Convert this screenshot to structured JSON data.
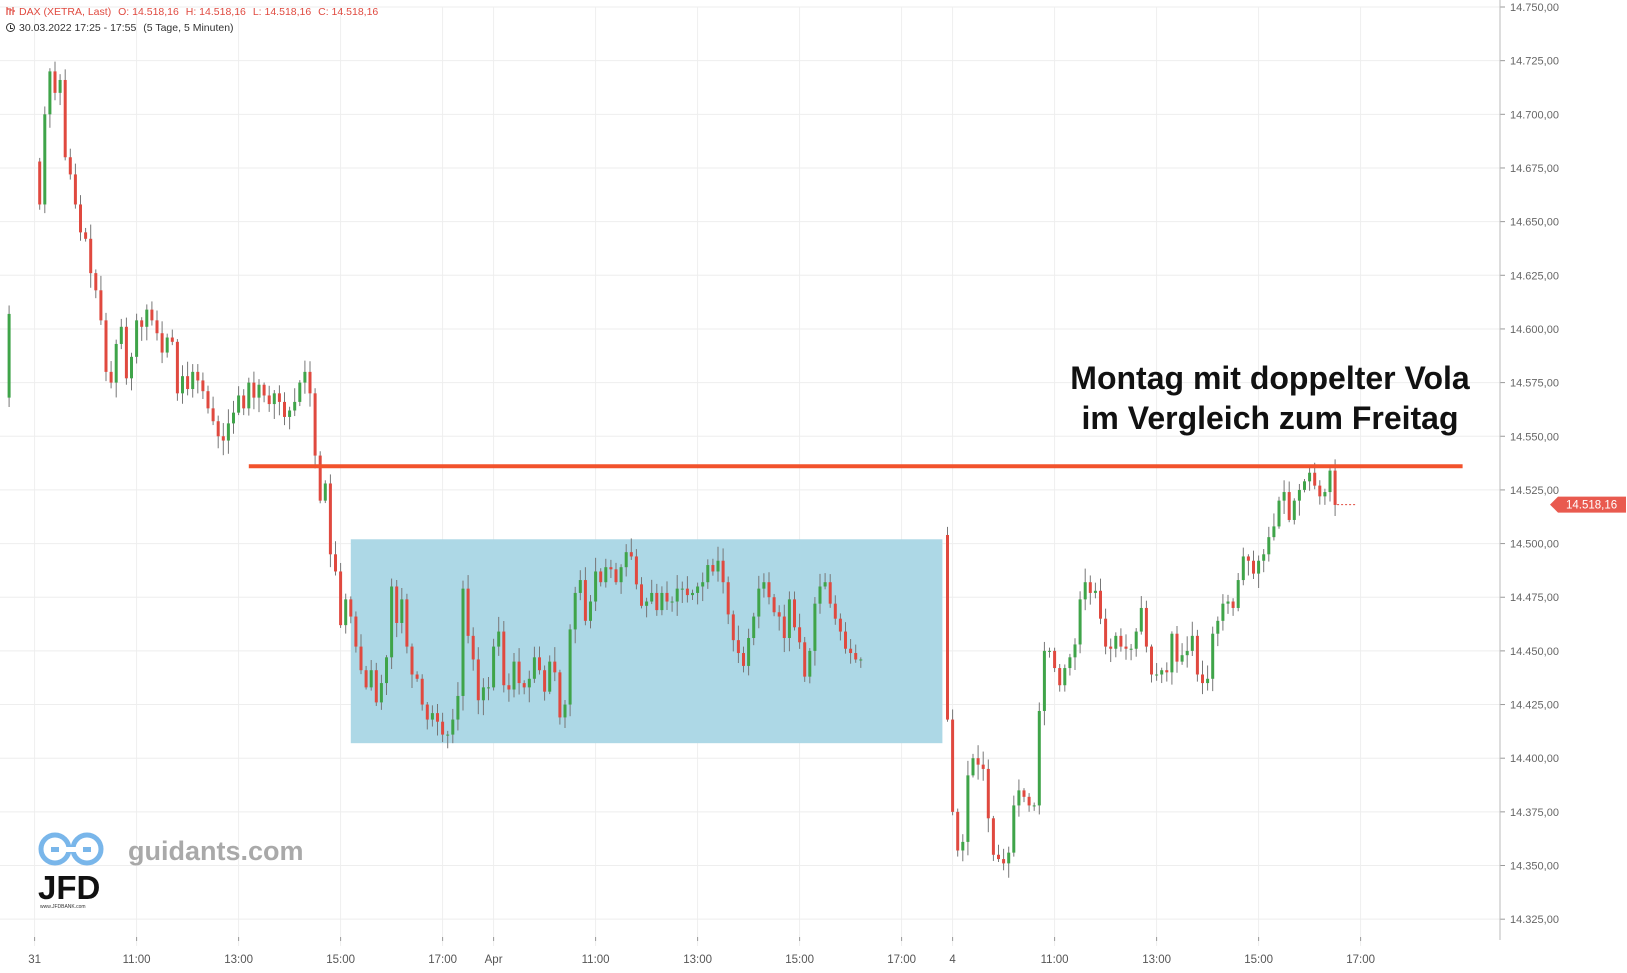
{
  "header": {
    "line1": {
      "instrument": "DAX (XETRA, Last)",
      "open": "O: 14.518,16",
      "high": "H: 14.518,16",
      "low": "L: 14.518,16",
      "close": "C: 14.518,16"
    },
    "line2": {
      "range": "30.03.2022 17:25 - 17:55",
      "period": "(5 Tage, 5 Minuten)"
    }
  },
  "annotation": {
    "line1": "Montag mit doppelter Vola",
    "line2": "im Vergleich zum Freitag"
  },
  "branding": {
    "site": "guidants.com",
    "jfd": "JFD",
    "jfd_sub": "www.JFDBANK.com"
  },
  "colors": {
    "up": "#3fa449",
    "down": "#e0493f",
    "resistance_line": "#f2522c",
    "range_box": "#add8e6",
    "last_price_badge": "#e95a4f",
    "grid": "#eeeeee"
  },
  "chart_data": {
    "type": "candlestick",
    "price_axis": {
      "min": 14312.5,
      "max": 14750,
      "ticks": [
        "14.750,00",
        "14.725,00",
        "14.700,00",
        "14.675,00",
        "14.650,00",
        "14.625,00",
        "14.600,00",
        "14.575,00",
        "14.550,00",
        "14.525,00",
        "14.500,00",
        "14.475,00",
        "14.450,00",
        "14.425,00",
        "14.400,00",
        "14.375,00",
        "14.350,00",
        "14.325,00"
      ],
      "tick_values": [
        14750,
        14725,
        14700,
        14675,
        14650,
        14625,
        14600,
        14575,
        14550,
        14525,
        14500,
        14475,
        14450,
        14425,
        14400,
        14375,
        14350,
        14325
      ]
    },
    "time_axis": {
      "labels": [
        "31",
        "11:00",
        "13:00",
        "15:00",
        "17:00",
        "Apr",
        "11:00",
        "13:00",
        "15:00",
        "17:00",
        "4",
        "11:00",
        "13:00",
        "15:00",
        "17:00"
      ],
      "label_bar_index": [
        6,
        26,
        46,
        66,
        86,
        96,
        116,
        136,
        156,
        176,
        186,
        206,
        226,
        246,
        266
      ]
    },
    "last_price": {
      "value": 14518.16,
      "label": "14.518,16"
    },
    "resistance": {
      "value": 14536,
      "from_bar": 48,
      "to_bar": 286
    },
    "range_box": {
      "top": 14502,
      "bottom": 14407,
      "from_bar": 68,
      "to_bar": 184
    },
    "segments": [
      {
        "start_bar": 0,
        "values": [
          14568,
          14607
        ]
      },
      {
        "start_bar": 6,
        "values": [
          14678,
          14658,
          14700,
          14720,
          14710,
          14716,
          14680,
          14672,
          14658,
          14645,
          14642,
          14626,
          14618,
          14604,
          14580,
          14575,
          14593,
          14601,
          14577,
          14587,
          14604,
          14601,
          14609,
          14604,
          14598,
          14589,
          14596,
          14594,
          14570,
          14578,
          14572,
          14580,
          14576,
          14571,
          14563,
          14557,
          14550,
          14548,
          14556,
          14561,
          14569,
          14563,
          14575,
          14568,
          14574,
          14569,
          14565,
          14570,
          14566,
          14559,
          14562,
          14566,
          14575,
          14580,
          14570,
          14541,
          14520,
          14528,
          14495,
          14487,
          14462,
          14474,
          14466,
          14452,
          14441,
          14433,
          14441,
          14426,
          14435,
          14447,
          14480,
          14463,
          14474,
          14452,
          14439,
          14437,
          14425,
          14418,
          14421,
          14417,
          14411,
          14411,
          14418,
          14429,
          14479,
          14457,
          14446,
          14427,
          14433,
          14433,
          14452,
          14459,
          14434,
          14432,
          14445,
          14435,
          14433,
          14437,
          14447,
          14441,
          14431,
          14445,
          14440,
          14419,
          14425,
          14460,
          14477,
          14483,
          14464,
          14473,
          14487,
          14482,
          14489,
          14488,
          14482,
          14489,
          14496,
          14494,
          14481,
          14471,
          14473,
          14477,
          14469,
          14477,
          14473,
          14473,
          14479,
          14479,
          14476,
          14477,
          14480,
          14482,
          14490,
          14487,
          14492,
          14482,
          14467,
          14455,
          14449,
          14443,
          14456,
          14466,
          14479,
          14482,
          14475,
          14468,
          14466,
          14456,
          14474,
          14461,
          14454,
          14438,
          14450,
          14472,
          14480,
          14482,
          14472,
          14465,
          14459,
          14451,
          14449,
          14446,
          14446
        ]
      },
      {
        "start_bar": 184,
        "values": [
          14504,
          14418,
          14375,
          14357,
          14361,
          14392,
          14400,
          14397,
          14395,
          14372,
          14355,
          14353,
          14351,
          14356,
          14378,
          14385,
          14382,
          14378,
          14378,
          14422,
          14450,
          14450,
          14442,
          14434,
          14442,
          14447,
          14453,
          14474,
          14482,
          14477,
          14478,
          14465,
          14452,
          14451,
          14457,
          14452,
          14451,
          14451,
          14459,
          14470,
          14452,
          14439,
          14439,
          14441,
          14440,
          14458,
          14445,
          14448,
          14450,
          14457,
          14439,
          14435,
          14437,
          14458,
          14464,
          14472,
          14473,
          14470,
          14483,
          14494,
          14492,
          14486,
          14492,
          14495,
          14503,
          14508,
          14520,
          14524,
          14511,
          14520,
          14525,
          14529,
          14533,
          14527,
          14522,
          14524,
          14534,
          14518
        ]
      }
    ]
  }
}
